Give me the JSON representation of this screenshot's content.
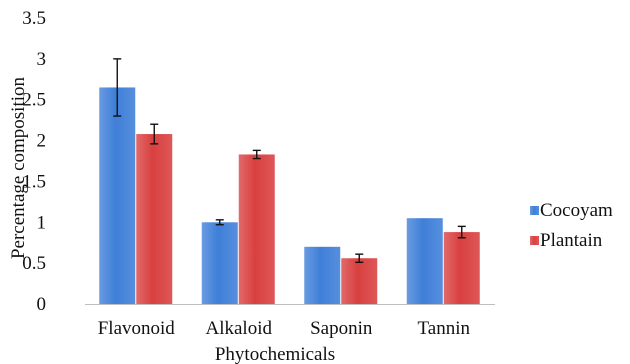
{
  "chart_data": {
    "type": "bar",
    "title": "",
    "xlabel": "Phytochemicals",
    "ylabel": "Percentage composition",
    "categories": [
      "Flavonoid",
      "Alkaloid",
      "Saponin",
      "Tannin"
    ],
    "ylim": [
      0,
      3.5
    ],
    "yticks": [
      "0",
      "0.5",
      "1",
      "1.5",
      "2",
      "2.5",
      "3",
      "3.5"
    ],
    "grid": false,
    "legend_position": "right",
    "series": [
      {
        "name": "Cocoyam",
        "color": "#3f7fd8",
        "values": [
          2.65,
          1.0,
          0.7,
          1.05
        ],
        "errors": [
          0.35,
          0.03,
          0.0,
          0.0
        ]
      },
      {
        "name": "Plantain",
        "color": "#d94040",
        "values": [
          2.08,
          1.83,
          0.56,
          0.88
        ],
        "errors": [
          0.12,
          0.05,
          0.05,
          0.07
        ]
      }
    ]
  }
}
